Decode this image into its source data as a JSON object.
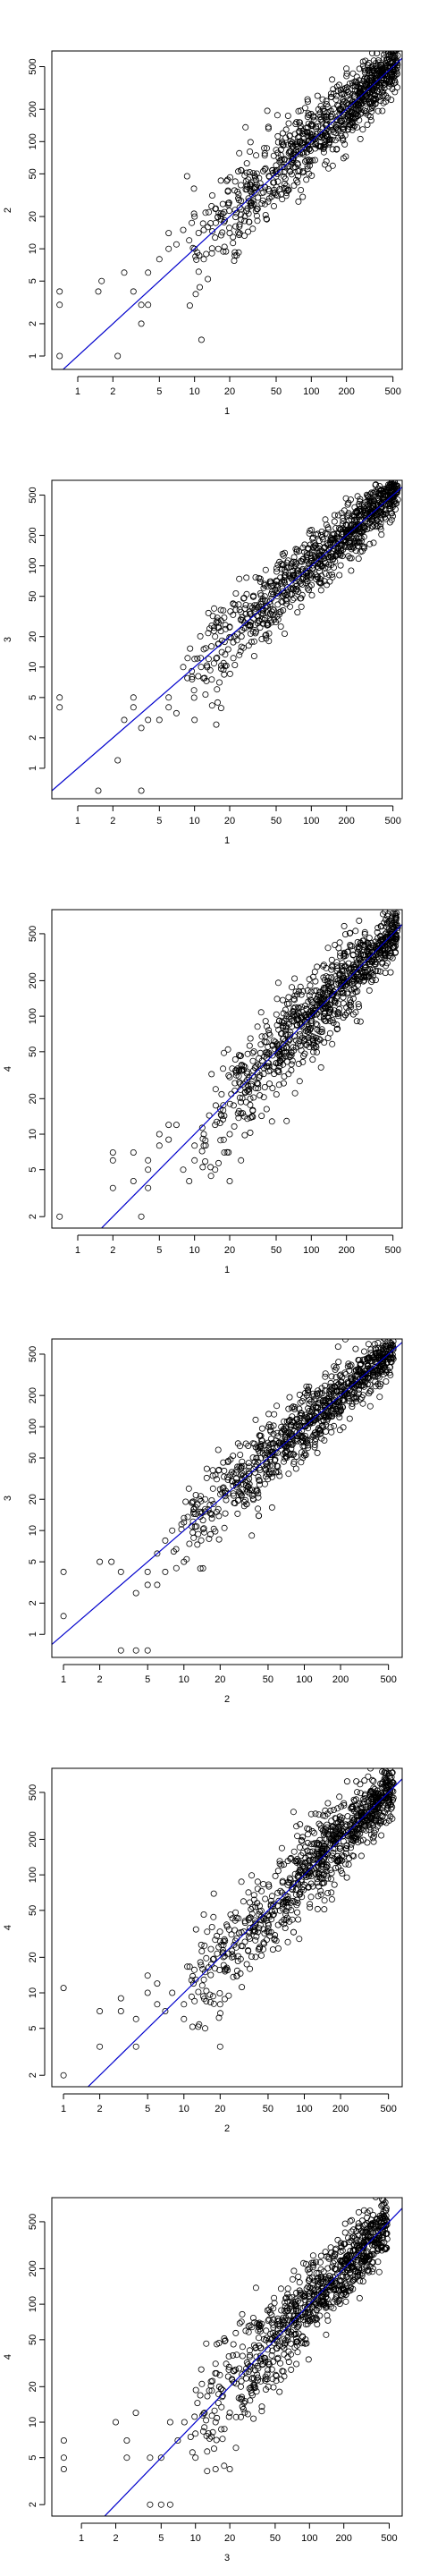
{
  "chart_data": [
    {
      "type": "scatter",
      "log_axes": true,
      "xlabel": "1",
      "ylabel": "2",
      "xticks": [
        "1",
        "2",
        "5",
        "10",
        "20",
        "50",
        "100",
        "200",
        "500"
      ],
      "yticks": [
        "1",
        "2",
        "5",
        "10",
        "20",
        "50",
        "100",
        "200",
        "500"
      ],
      "xlim": [
        0.6,
        600
      ],
      "ylim": [
        0.75,
        700
      ],
      "reference_line": {
        "slope": 1,
        "intercept": 0,
        "color": "#0000cc"
      },
      "points": [
        [
          0.7,
          1
        ],
        [
          0.7,
          3
        ],
        [
          0.7,
          4
        ],
        [
          1.5,
          4
        ],
        [
          1.6,
          5
        ],
        [
          2.2,
          1
        ],
        [
          2.5,
          6
        ],
        [
          3,
          4
        ],
        [
          3.5,
          3
        ],
        [
          3.5,
          2
        ],
        [
          4,
          3
        ],
        [
          4,
          6
        ],
        [
          5,
          8
        ],
        [
          6,
          10
        ],
        [
          6,
          14
        ],
        [
          7,
          11
        ],
        [
          8,
          15
        ],
        [
          9,
          12
        ],
        [
          10,
          10
        ],
        [
          10,
          20
        ],
        [
          12,
          8
        ],
        [
          12,
          15
        ],
        [
          14,
          25
        ],
        [
          16,
          10
        ],
        [
          18,
          22
        ],
        [
          20,
          14
        ],
        [
          22,
          35
        ],
        [
          25,
          28
        ],
        [
          30,
          40
        ],
        [
          35,
          30
        ],
        [
          40,
          55
        ],
        [
          50,
          60
        ],
        [
          60,
          45
        ],
        [
          70,
          90
        ],
        [
          80,
          100
        ],
        [
          100,
          110
        ],
        [
          120,
          90
        ],
        [
          150,
          180
        ],
        [
          200,
          230
        ],
        [
          250,
          220
        ],
        [
          300,
          350
        ],
        [
          400,
          420
        ],
        [
          500,
          550
        ]
      ],
      "cloud": {
        "n": 900,
        "xmin": 8,
        "xmax": 550,
        "spread": 0.22,
        "ratio": 1.0
      }
    },
    {
      "type": "scatter",
      "log_axes": true,
      "xlabel": "1",
      "ylabel": "3",
      "xticks": [
        "1",
        "2",
        "5",
        "10",
        "20",
        "50",
        "100",
        "200",
        "500"
      ],
      "yticks": [
        "1",
        "2",
        "5",
        "10",
        "20",
        "50",
        "100",
        "200",
        "500"
      ],
      "xlim": [
        0.6,
        600
      ],
      "ylim": [
        0.5,
        700
      ],
      "reference_line": {
        "slope": 1,
        "intercept": 0,
        "color": "#0000cc"
      },
      "points": [
        [
          0.7,
          4
        ],
        [
          0.7,
          5
        ],
        [
          1.5,
          0.6
        ],
        [
          3.5,
          0.6
        ],
        [
          2.2,
          1.2
        ],
        [
          2.5,
          3
        ],
        [
          3,
          4
        ],
        [
          3,
          5
        ],
        [
          3.5,
          2.5
        ],
        [
          4,
          3
        ],
        [
          5,
          3
        ],
        [
          6,
          4
        ],
        [
          6,
          5
        ],
        [
          7,
          3.5
        ],
        [
          8,
          10
        ],
        [
          10,
          3
        ],
        [
          10,
          12
        ],
        [
          12,
          15
        ],
        [
          15,
          20
        ],
        [
          20,
          25
        ],
        [
          25,
          35
        ],
        [
          30,
          40
        ],
        [
          40,
          50
        ],
        [
          50,
          65
        ],
        [
          70,
          80
        ],
        [
          100,
          120
        ],
        [
          150,
          180
        ],
        [
          200,
          250
        ],
        [
          300,
          330
        ],
        [
          400,
          420
        ],
        [
          550,
          450
        ]
      ],
      "cloud": {
        "n": 900,
        "xmin": 8,
        "xmax": 550,
        "spread": 0.2,
        "ratio": 1.0
      }
    },
    {
      "type": "scatter",
      "log_axes": true,
      "xlabel": "1",
      "ylabel": "4",
      "xticks": [
        "1",
        "2",
        "5",
        "10",
        "20",
        "50",
        "100",
        "200",
        "500"
      ],
      "yticks": [
        "2",
        "5",
        "10",
        "20",
        "50",
        "100",
        "200",
        "500"
      ],
      "xlim": [
        0.6,
        600
      ],
      "ylim": [
        1.6,
        800
      ],
      "reference_line": {
        "slope": 1,
        "intercept": 0,
        "color": "#0000cc"
      },
      "points": [
        [
          0.7,
          2
        ],
        [
          2,
          3.5
        ],
        [
          2,
          6
        ],
        [
          2,
          7
        ],
        [
          3,
          4
        ],
        [
          3,
          7
        ],
        [
          3.5,
          2
        ],
        [
          4,
          3.5
        ],
        [
          4,
          5
        ],
        [
          4,
          6
        ],
        [
          5,
          8
        ],
        [
          5,
          10
        ],
        [
          6,
          9
        ],
        [
          6,
          12
        ],
        [
          7,
          12
        ],
        [
          8,
          5
        ],
        [
          9,
          4
        ],
        [
          10,
          8
        ],
        [
          10,
          6
        ],
        [
          12,
          8
        ],
        [
          12,
          10
        ],
        [
          15,
          5
        ],
        [
          15,
          12
        ],
        [
          18,
          7
        ],
        [
          20,
          4
        ],
        [
          20,
          10
        ],
        [
          25,
          6
        ],
        [
          25,
          15
        ],
        [
          30,
          20
        ],
        [
          40,
          25
        ],
        [
          50,
          40
        ],
        [
          60,
          50
        ],
        [
          80,
          70
        ],
        [
          100,
          100
        ],
        [
          150,
          150
        ],
        [
          200,
          220
        ],
        [
          300,
          350
        ],
        [
          400,
          450
        ],
        [
          550,
          560
        ]
      ],
      "cloud": {
        "n": 900,
        "xmin": 10,
        "xmax": 550,
        "spread": 0.22,
        "ratio": 1.0
      }
    },
    {
      "type": "scatter",
      "log_axes": true,
      "xlabel": "2",
      "ylabel": "3",
      "xticks": [
        "1",
        "2",
        "5",
        "10",
        "20",
        "50",
        "100",
        "200",
        "500"
      ],
      "yticks": [
        "1",
        "2",
        "5",
        "10",
        "20",
        "50",
        "100",
        "200",
        "500"
      ],
      "xlim": [
        0.8,
        650
      ],
      "ylim": [
        0.6,
        700
      ],
      "reference_line": {
        "slope": 1,
        "intercept": 0,
        "color": "#0000cc"
      },
      "points": [
        [
          1,
          4
        ],
        [
          1,
          1.5
        ],
        [
          2,
          5
        ],
        [
          2.5,
          5
        ],
        [
          3,
          0.7
        ],
        [
          4,
          0.7
        ],
        [
          5,
          0.7
        ],
        [
          3,
          4
        ],
        [
          4,
          2.5
        ],
        [
          5,
          3
        ],
        [
          5,
          4
        ],
        [
          6,
          3
        ],
        [
          6,
          6
        ],
        [
          7,
          4
        ],
        [
          7,
          8
        ],
        [
          8,
          10
        ],
        [
          10,
          5
        ],
        [
          10,
          12
        ],
        [
          12,
          15
        ],
        [
          15,
          20
        ],
        [
          20,
          25
        ],
        [
          25,
          30
        ],
        [
          30,
          40
        ],
        [
          40,
          50
        ],
        [
          50,
          70
        ],
        [
          70,
          90
        ],
        [
          100,
          120
        ],
        [
          150,
          170
        ],
        [
          200,
          250
        ],
        [
          300,
          330
        ],
        [
          450,
          420
        ],
        [
          550,
          450
        ]
      ],
      "cloud": {
        "n": 900,
        "xmin": 8,
        "xmax": 550,
        "spread": 0.2,
        "ratio": 1.0
      }
    },
    {
      "type": "scatter",
      "log_axes": true,
      "xlabel": "2",
      "ylabel": "4",
      "xticks": [
        "1",
        "2",
        "5",
        "10",
        "20",
        "50",
        "100",
        "200",
        "500"
      ],
      "yticks": [
        "2",
        "5",
        "10",
        "20",
        "50",
        "100",
        "200",
        "500"
      ],
      "xlim": [
        0.8,
        650
      ],
      "ylim": [
        1.6,
        800
      ],
      "reference_line": {
        "slope": 1,
        "intercept": 0,
        "color": "#0000cc"
      },
      "points": [
        [
          1,
          11
        ],
        [
          1,
          2
        ],
        [
          2,
          3.5
        ],
        [
          2,
          7
        ],
        [
          3,
          7
        ],
        [
          3,
          9
        ],
        [
          4,
          3.5
        ],
        [
          4,
          6
        ],
        [
          5,
          10
        ],
        [
          5,
          14
        ],
        [
          6,
          8
        ],
        [
          6,
          12
        ],
        [
          7,
          7
        ],
        [
          8,
          10
        ],
        [
          10,
          6
        ],
        [
          10,
          8
        ],
        [
          12,
          12
        ],
        [
          15,
          5
        ],
        [
          15,
          15
        ],
        [
          20,
          3.5
        ],
        [
          20,
          8
        ],
        [
          25,
          20
        ],
        [
          30,
          25
        ],
        [
          40,
          30
        ],
        [
          50,
          45
        ],
        [
          60,
          55
        ],
        [
          80,
          75
        ],
        [
          100,
          100
        ],
        [
          150,
          150
        ],
        [
          200,
          220
        ],
        [
          300,
          320
        ],
        [
          400,
          450
        ],
        [
          550,
          600
        ]
      ],
      "cloud": {
        "n": 900,
        "xmin": 10,
        "xmax": 550,
        "spread": 0.22,
        "ratio": 1.0
      }
    },
    {
      "type": "scatter",
      "log_axes": true,
      "xlabel": "3",
      "ylabel": "4",
      "xticks": [
        "1",
        "2",
        "5",
        "10",
        "20",
        "50",
        "100",
        "200",
        "500"
      ],
      "yticks": [
        "2",
        "5",
        "10",
        "20",
        "50",
        "100",
        "200",
        "500"
      ],
      "xlim": [
        0.55,
        650
      ],
      "ylim": [
        1.6,
        800
      ],
      "reference_line": {
        "slope": 1,
        "intercept": 0,
        "color": "#0000cc"
      },
      "points": [
        [
          0.7,
          4
        ],
        [
          0.7,
          5
        ],
        [
          0.7,
          7
        ],
        [
          2,
          10
        ],
        [
          2.5,
          5
        ],
        [
          2.5,
          7
        ],
        [
          3,
          12
        ],
        [
          4,
          2
        ],
        [
          4,
          5
        ],
        [
          5,
          2
        ],
        [
          5,
          5
        ],
        [
          6,
          2
        ],
        [
          6,
          10
        ],
        [
          7,
          7
        ],
        [
          8,
          10
        ],
        [
          10,
          5
        ],
        [
          10,
          8
        ],
        [
          12,
          12
        ],
        [
          15,
          4
        ],
        [
          15,
          10
        ],
        [
          20,
          4
        ],
        [
          20,
          12
        ],
        [
          25,
          20
        ],
        [
          30,
          30
        ],
        [
          40,
          35
        ],
        [
          50,
          50
        ],
        [
          70,
          70
        ],
        [
          100,
          100
        ],
        [
          150,
          140
        ],
        [
          200,
          220
        ],
        [
          300,
          340
        ],
        [
          400,
          500
        ],
        [
          450,
          560
        ]
      ],
      "cloud": {
        "n": 900,
        "xmin": 8,
        "xmax": 480,
        "spread": 0.22,
        "ratio": 1.0
      }
    }
  ]
}
